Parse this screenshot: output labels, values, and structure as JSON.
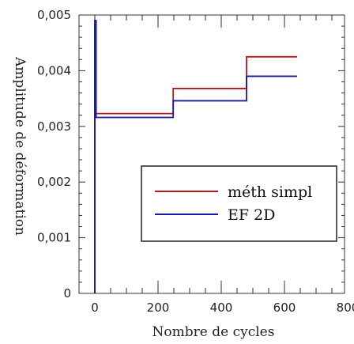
{
  "chart_data": {
    "type": "line",
    "xlabel": "Nombre de cycles",
    "ylabel": "Amplitude de déformation",
    "xlim": [
      0,
      800
    ],
    "ylim": [
      0,
      0.005
    ],
    "x_ticks": [
      {
        "value": 0,
        "label": "0"
      },
      {
        "value": 200,
        "label": "200"
      },
      {
        "value": 400,
        "label": "400"
      },
      {
        "value": 600,
        "label": "600"
      },
      {
        "value": 800,
        "label": "800"
      }
    ],
    "y_ticks": [
      {
        "value": 0,
        "label": "0"
      },
      {
        "value": 0.001,
        "label": "0,001"
      },
      {
        "value": 0.002,
        "label": "0,002"
      },
      {
        "value": 0.003,
        "label": "0,003"
      },
      {
        "value": 0.004,
        "label": "0,004"
      },
      {
        "value": 0.005,
        "label": "0,005"
      }
    ],
    "legend_position": "lower-right",
    "series": [
      {
        "name": "méth simpl",
        "color": "#c0141c",
        "x": [
          0,
          0,
          4,
          4,
          248,
          248,
          480,
          480,
          640
        ],
        "y": [
          0,
          0.0049,
          0.0049,
          0.00323,
          0.00323,
          0.00368,
          0.00368,
          0.00425,
          0.00425
        ]
      },
      {
        "name": "EF 2D",
        "color": "#1a1aa8",
        "x": [
          0,
          0,
          4,
          4,
          248,
          248,
          480,
          480,
          640
        ],
        "y": [
          0,
          0.0049,
          0.0049,
          0.00316,
          0.00316,
          0.00346,
          0.00346,
          0.0039,
          0.0039
        ]
      }
    ]
  }
}
